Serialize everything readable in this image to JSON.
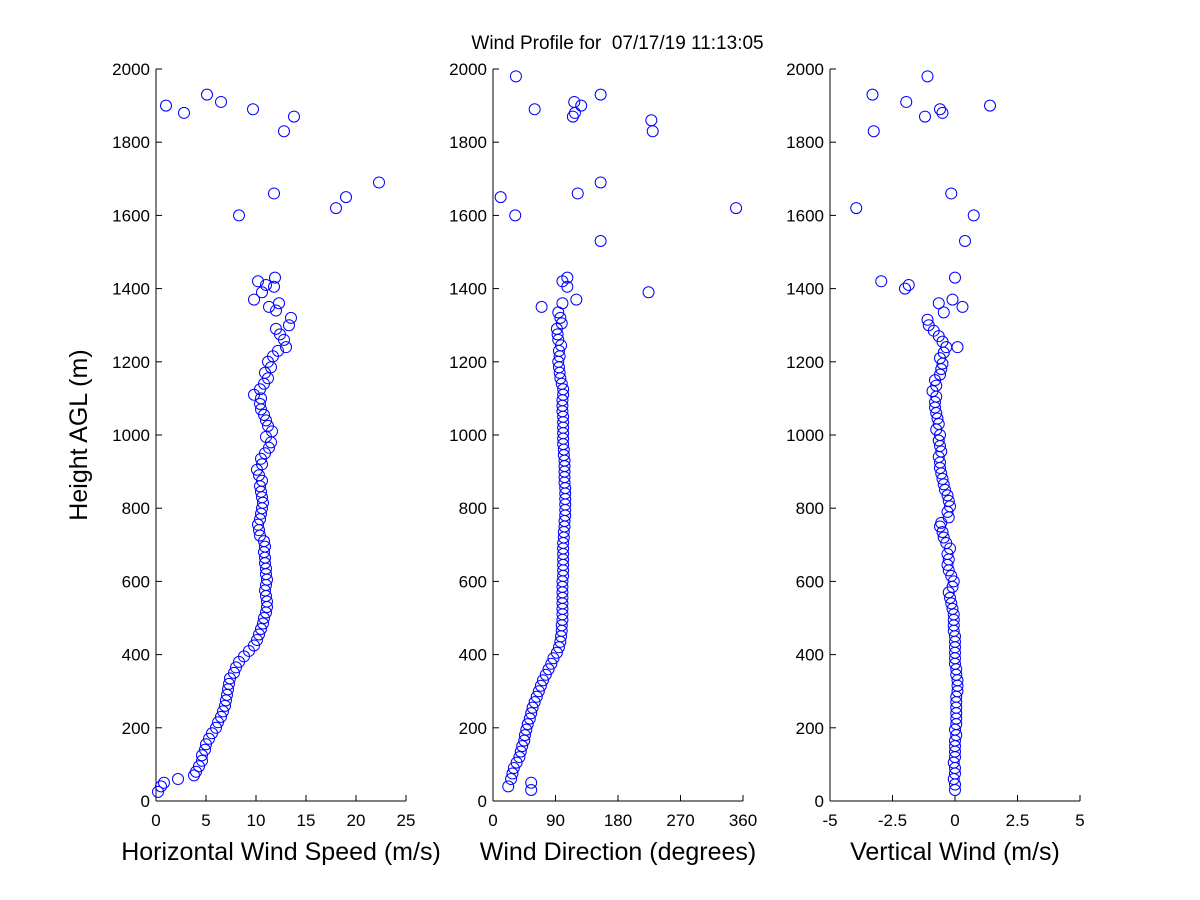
{
  "title": "Wind Profile for  07/17/19 11:13:05",
  "chart_data": [
    {
      "type": "scatter",
      "xlabel": "Horizontal Wind Speed (m/s)",
      "ylabel": "Height AGL (m)",
      "xlim": [
        0,
        25
      ],
      "ylim": [
        0,
        2000
      ],
      "xticks": [
        "0",
        "5",
        "10",
        "15",
        "20",
        "25"
      ],
      "yticks": [
        "0",
        "200",
        "400",
        "600",
        "800",
        "1000",
        "1200",
        "1400",
        "1600",
        "1800",
        "2000"
      ],
      "marker": "circle",
      "color": "#0000ff",
      "points": [
        [
          0.2,
          25
        ],
        [
          0.5,
          40
        ],
        [
          0.8,
          50
        ],
        [
          2.2,
          60
        ],
        [
          3.8,
          70
        ],
        [
          4.0,
          80
        ],
        [
          4.3,
          95
        ],
        [
          4.6,
          110
        ],
        [
          4.6,
          125
        ],
        [
          4.9,
          140
        ],
        [
          5.0,
          155
        ],
        [
          5.3,
          170
        ],
        [
          5.6,
          185
        ],
        [
          6.0,
          200
        ],
        [
          6.2,
          215
        ],
        [
          6.5,
          230
        ],
        [
          6.7,
          245
        ],
        [
          6.9,
          260
        ],
        [
          7.0,
          275
        ],
        [
          7.1,
          290
        ],
        [
          7.2,
          305
        ],
        [
          7.3,
          320
        ],
        [
          7.4,
          335
        ],
        [
          7.8,
          350
        ],
        [
          8.0,
          365
        ],
        [
          8.3,
          380
        ],
        [
          8.8,
          395
        ],
        [
          9.3,
          410
        ],
        [
          9.8,
          425
        ],
        [
          10.1,
          440
        ],
        [
          10.3,
          455
        ],
        [
          10.5,
          470
        ],
        [
          10.7,
          485
        ],
        [
          10.8,
          500
        ],
        [
          11.0,
          515
        ],
        [
          11.1,
          530
        ],
        [
          11.1,
          545
        ],
        [
          11.0,
          560
        ],
        [
          10.9,
          575
        ],
        [
          11.0,
          590
        ],
        [
          11.1,
          605
        ],
        [
          11.0,
          620
        ],
        [
          11.0,
          635
        ],
        [
          10.9,
          650
        ],
        [
          10.9,
          665
        ],
        [
          10.8,
          680
        ],
        [
          10.9,
          695
        ],
        [
          10.8,
          710
        ],
        [
          10.4,
          725
        ],
        [
          10.3,
          740
        ],
        [
          10.2,
          755
        ],
        [
          10.4,
          770
        ],
        [
          10.5,
          785
        ],
        [
          10.6,
          800
        ],
        [
          10.7,
          815
        ],
        [
          10.6,
          830
        ],
        [
          10.5,
          845
        ],
        [
          10.4,
          860
        ],
        [
          10.6,
          875
        ],
        [
          10.3,
          890
        ],
        [
          10.1,
          905
        ],
        [
          10.6,
          920
        ],
        [
          10.5,
          935
        ],
        [
          10.9,
          950
        ],
        [
          11.3,
          965
        ],
        [
          11.5,
          980
        ],
        [
          11.0,
          995
        ],
        [
          11.6,
          1010
        ],
        [
          11.2,
          1025
        ],
        [
          11.0,
          1040
        ],
        [
          10.8,
          1055
        ],
        [
          10.5,
          1070
        ],
        [
          10.4,
          1085
        ],
        [
          10.5,
          1100
        ],
        [
          9.8,
          1110
        ],
        [
          10.4,
          1125
        ],
        [
          10.8,
          1140
        ],
        [
          11.2,
          1155
        ],
        [
          10.9,
          1170
        ],
        [
          11.5,
          1185
        ],
        [
          11.2,
          1200
        ],
        [
          11.7,
          1215
        ],
        [
          12.2,
          1230
        ],
        [
          13.0,
          1240
        ],
        [
          12.8,
          1260
        ],
        [
          12.4,
          1275
        ],
        [
          12.0,
          1290
        ],
        [
          13.3,
          1300
        ],
        [
          13.5,
          1320
        ],
        [
          12.0,
          1340
        ],
        [
          11.3,
          1350
        ],
        [
          12.3,
          1360
        ],
        [
          9.8,
          1370
        ],
        [
          10.6,
          1390
        ],
        [
          11.8,
          1405
        ],
        [
          11.0,
          1410
        ],
        [
          10.2,
          1420
        ],
        [
          11.9,
          1430
        ],
        [
          8.3,
          1600
        ],
        [
          18.0,
          1620
        ],
        [
          19.0,
          1650
        ],
        [
          11.8,
          1660
        ],
        [
          22.3,
          1690
        ],
        [
          12.8,
          1830
        ],
        [
          13.8,
          1870
        ],
        [
          2.8,
          1880
        ],
        [
          9.7,
          1890
        ],
        [
          1.0,
          1900
        ],
        [
          6.5,
          1910
        ],
        [
          5.1,
          1930
        ]
      ]
    },
    {
      "type": "scatter",
      "xlabel": "Wind Direction (degrees)",
      "ylabel": "",
      "xlim": [
        0,
        360
      ],
      "ylim": [
        0,
        2000
      ],
      "xticks": [
        "0",
        "90",
        "180",
        "270",
        "360"
      ],
      "yticks": [
        "0",
        "200",
        "400",
        "600",
        "800",
        "1000",
        "1200",
        "1400",
        "1600",
        "1800",
        "2000"
      ],
      "marker": "circle",
      "color": "#0000ff",
      "points": [
        [
          55,
          30
        ],
        [
          22,
          40
        ],
        [
          55,
          50
        ],
        [
          26,
          60
        ],
        [
          28,
          75
        ],
        [
          30,
          90
        ],
        [
          34,
          105
        ],
        [
          38,
          120
        ],
        [
          40,
          135
        ],
        [
          42,
          150
        ],
        [
          45,
          165
        ],
        [
          46,
          180
        ],
        [
          48,
          195
        ],
        [
          50,
          210
        ],
        [
          53,
          225
        ],
        [
          55,
          240
        ],
        [
          57,
          255
        ],
        [
          60,
          270
        ],
        [
          63,
          285
        ],
        [
          66,
          300
        ],
        [
          69,
          315
        ],
        [
          72,
          330
        ],
        [
          76,
          345
        ],
        [
          80,
          360
        ],
        [
          84,
          375
        ],
        [
          87,
          390
        ],
        [
          92,
          405
        ],
        [
          95,
          420
        ],
        [
          97,
          435
        ],
        [
          98,
          450
        ],
        [
          99,
          465
        ],
        [
          99,
          480
        ],
        [
          100,
          495
        ],
        [
          100,
          510
        ],
        [
          100,
          525
        ],
        [
          100,
          540
        ],
        [
          100,
          555
        ],
        [
          100,
          570
        ],
        [
          100,
          585
        ],
        [
          100,
          600
        ],
        [
          101,
          615
        ],
        [
          101,
          630
        ],
        [
          101,
          645
        ],
        [
          101,
          660
        ],
        [
          101,
          675
        ],
        [
          101,
          690
        ],
        [
          101,
          705
        ],
        [
          102,
          720
        ],
        [
          102,
          735
        ],
        [
          103,
          750
        ],
        [
          103,
          765
        ],
        [
          104,
          780
        ],
        [
          104,
          795
        ],
        [
          104,
          810
        ],
        [
          104,
          825
        ],
        [
          104,
          840
        ],
        [
          104,
          855
        ],
        [
          103,
          870
        ],
        [
          103,
          885
        ],
        [
          103,
          900
        ],
        [
          103,
          915
        ],
        [
          103,
          930
        ],
        [
          102,
          945
        ],
        [
          102,
          960
        ],
        [
          101,
          975
        ],
        [
          101,
          990
        ],
        [
          101,
          1005
        ],
        [
          101,
          1020
        ],
        [
          101,
          1035
        ],
        [
          101,
          1050
        ],
        [
          100,
          1065
        ],
        [
          100,
          1080
        ],
        [
          100,
          1095
        ],
        [
          101,
          1110
        ],
        [
          101,
          1125
        ],
        [
          99,
          1140
        ],
        [
          97,
          1155
        ],
        [
          96,
          1170
        ],
        [
          95,
          1185
        ],
        [
          94,
          1200
        ],
        [
          96,
          1215
        ],
        [
          95,
          1230
        ],
        [
          98,
          1245
        ],
        [
          94,
          1260
        ],
        [
          93,
          1275
        ],
        [
          92,
          1290
        ],
        [
          99,
          1305
        ],
        [
          97,
          1320
        ],
        [
          94,
          1335
        ],
        [
          70,
          1350
        ],
        [
          100,
          1360
        ],
        [
          120,
          1370
        ],
        [
          224,
          1390
        ],
        [
          107,
          1405
        ],
        [
          100,
          1420
        ],
        [
          107,
          1430
        ],
        [
          155,
          1530
        ],
        [
          32,
          1600
        ],
        [
          350,
          1620
        ],
        [
          11,
          1650
        ],
        [
          122,
          1660
        ],
        [
          155,
          1690
        ],
        [
          230,
          1830
        ],
        [
          228,
          1860
        ],
        [
          115,
          1870
        ],
        [
          118,
          1880
        ],
        [
          60,
          1890
        ],
        [
          127,
          1900
        ],
        [
          117,
          1910
        ],
        [
          155,
          1930
        ],
        [
          33,
          1980
        ]
      ]
    },
    {
      "type": "scatter",
      "xlabel": "Vertical Wind (m/s)",
      "ylabel": "",
      "xlim": [
        -5,
        5
      ],
      "ylim": [
        0,
        2000
      ],
      "xticks": [
        "-5",
        "-2.5",
        "0",
        "2.5",
        "5"
      ],
      "yticks": [
        "0",
        "200",
        "400",
        "600",
        "800",
        "1000",
        "1200",
        "1400",
        "1600",
        "1800",
        "2000"
      ],
      "marker": "circle",
      "color": "#0000ff",
      "points": [
        [
          0.0,
          30
        ],
        [
          0.0,
          45
        ],
        [
          -0.05,
          60
        ],
        [
          0.0,
          75
        ],
        [
          0.0,
          90
        ],
        [
          -0.05,
          105
        ],
        [
          0.0,
          120
        ],
        [
          0.0,
          135
        ],
        [
          0.0,
          150
        ],
        [
          0.0,
          165
        ],
        [
          0.05,
          180
        ],
        [
          0.0,
          195
        ],
        [
          0.05,
          210
        ],
        [
          0.05,
          225
        ],
        [
          0.05,
          240
        ],
        [
          0.05,
          255
        ],
        [
          0.05,
          270
        ],
        [
          0.05,
          285
        ],
        [
          0.1,
          300
        ],
        [
          0.1,
          315
        ],
        [
          0.1,
          330
        ],
        [
          0.05,
          345
        ],
        [
          0.05,
          360
        ],
        [
          0.0,
          375
        ],
        [
          0.0,
          390
        ],
        [
          0.0,
          405
        ],
        [
          0.0,
          420
        ],
        [
          0.0,
          435
        ],
        [
          0.0,
          450
        ],
        [
          -0.05,
          465
        ],
        [
          -0.05,
          480
        ],
        [
          -0.05,
          495
        ],
        [
          -0.05,
          510
        ],
        [
          -0.1,
          525
        ],
        [
          -0.15,
          540
        ],
        [
          -0.2,
          555
        ],
        [
          -0.25,
          570
        ],
        [
          -0.1,
          585
        ],
        [
          -0.05,
          600
        ],
        [
          -0.15,
          615
        ],
        [
          -0.25,
          630
        ],
        [
          -0.3,
          645
        ],
        [
          -0.25,
          660
        ],
        [
          -0.3,
          675
        ],
        [
          -0.2,
          690
        ],
        [
          -0.35,
          705
        ],
        [
          -0.45,
          720
        ],
        [
          -0.5,
          735
        ],
        [
          -0.6,
          750
        ],
        [
          -0.55,
          760
        ],
        [
          -0.25,
          775
        ],
        [
          -0.3,
          790
        ],
        [
          -0.2,
          805
        ],
        [
          -0.25,
          820
        ],
        [
          -0.3,
          835
        ],
        [
          -0.4,
          850
        ],
        [
          -0.45,
          865
        ],
        [
          -0.5,
          880
        ],
        [
          -0.55,
          895
        ],
        [
          -0.6,
          910
        ],
        [
          -0.6,
          925
        ],
        [
          -0.65,
          940
        ],
        [
          -0.55,
          955
        ],
        [
          -0.6,
          970
        ],
        [
          -0.65,
          985
        ],
        [
          -0.6,
          1000
        ],
        [
          -0.75,
          1015
        ],
        [
          -0.65,
          1030
        ],
        [
          -0.7,
          1045
        ],
        [
          -0.75,
          1060
        ],
        [
          -0.8,
          1075
        ],
        [
          -0.8,
          1090
        ],
        [
          -0.75,
          1105
        ],
        [
          -0.9,
          1120
        ],
        [
          -0.75,
          1135
        ],
        [
          -0.8,
          1150
        ],
        [
          -0.6,
          1165
        ],
        [
          -0.55,
          1180
        ],
        [
          -0.5,
          1195
        ],
        [
          -0.6,
          1210
        ],
        [
          -0.45,
          1225
        ],
        [
          -0.35,
          1240
        ],
        [
          0.1,
          1240
        ],
        [
          -0.5,
          1255
        ],
        [
          -0.65,
          1270
        ],
        [
          -0.85,
          1285
        ],
        [
          -1.05,
          1300
        ],
        [
          -1.1,
          1315
        ],
        [
          -0.45,
          1335
        ],
        [
          -0.65,
          1360
        ],
        [
          -0.1,
          1370
        ],
        [
          0.3,
          1350
        ],
        [
          -2.0,
          1400
        ],
        [
          -1.85,
          1410
        ],
        [
          -2.95,
          1420
        ],
        [
          0.0,
          1430
        ],
        [
          0.4,
          1530
        ],
        [
          0.75,
          1600
        ],
        [
          -3.95,
          1620
        ],
        [
          -0.15,
          1660
        ],
        [
          -3.25,
          1830
        ],
        [
          -1.2,
          1870
        ],
        [
          -0.5,
          1880
        ],
        [
          -0.6,
          1890
        ],
        [
          1.4,
          1900
        ],
        [
          -1.95,
          1910
        ],
        [
          -3.3,
          1930
        ],
        [
          -1.1,
          1980
        ]
      ]
    }
  ]
}
